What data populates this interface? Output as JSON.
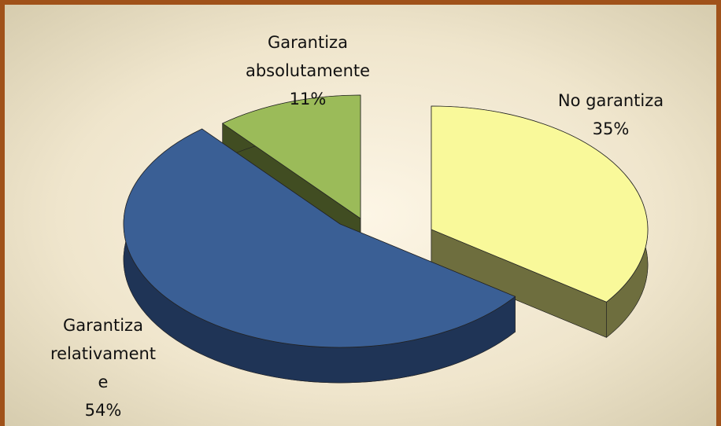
{
  "chart_data": {
    "type": "pie",
    "categories": [
      "No garantiza",
      "Garantiza relativamente",
      "Garantiza absolutamente"
    ],
    "values": [
      35,
      54,
      11
    ],
    "value_labels": [
      "35%",
      "54%",
      "11%"
    ],
    "colors": [
      "#f9f99a",
      "#3a5f95",
      "#9bbb59"
    ],
    "side_colors": [
      "#6e6e3e",
      "#1f3456",
      "#414d22"
    ]
  }
}
